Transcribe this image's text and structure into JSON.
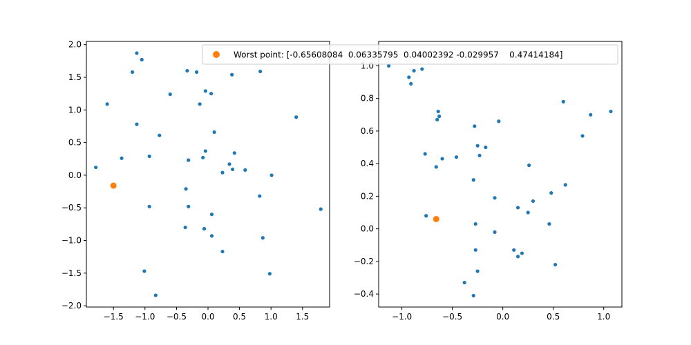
{
  "chart_data": [
    {
      "type": "scatter",
      "xlim": [
        -1.93,
        1.93
      ],
      "ylim": [
        -2.02,
        2.05
      ],
      "xticks": [
        -1.5,
        -1.0,
        -0.5,
        0.0,
        0.5,
        1.0,
        1.5
      ],
      "yticks": [
        -2.0,
        -1.5,
        -1.0,
        -0.5,
        0.0,
        0.5,
        1.0,
        1.5,
        2.0
      ],
      "xtick_labels": [
        "−1.5",
        "−1.0",
        "−0.5",
        "0.0",
        "0.5",
        "1.0",
        "1.5"
      ],
      "ytick_labels": [
        "−2.0",
        "−1.5",
        "−1.0",
        "−0.5",
        "0.0",
        "0.5",
        "1.0",
        "1.5",
        "2.0"
      ],
      "grid": false,
      "series": [
        {
          "color": "#1f77b4",
          "points": [
            [
              -1.13,
              1.87
            ],
            [
              -1.05,
              1.77
            ],
            [
              -1.2,
              1.58
            ],
            [
              -0.33,
              1.6
            ],
            [
              -0.18,
              1.58
            ],
            [
              0.38,
              1.54
            ],
            [
              0.83,
              1.59
            ],
            [
              -0.6,
              1.24
            ],
            [
              -0.04,
              1.29
            ],
            [
              0.05,
              1.25
            ],
            [
              -1.6,
              1.09
            ],
            [
              -0.13,
              1.09
            ],
            [
              1.4,
              0.89
            ],
            [
              -1.13,
              0.78
            ],
            [
              0.1,
              0.66
            ],
            [
              -0.77,
              0.61
            ],
            [
              -0.04,
              0.37
            ],
            [
              0.42,
              0.34
            ],
            [
              -0.93,
              0.29
            ],
            [
              -0.08,
              0.27
            ],
            [
              -1.37,
              0.26
            ],
            [
              -0.31,
              0.23
            ],
            [
              0.34,
              0.17
            ],
            [
              -1.78,
              0.12
            ],
            [
              0.39,
              0.09
            ],
            [
              0.59,
              0.08
            ],
            [
              0.23,
              0.04
            ],
            [
              1.01,
              0.0
            ],
            [
              -0.35,
              -0.21
            ],
            [
              0.82,
              -0.32
            ],
            [
              -0.93,
              -0.48
            ],
            [
              -0.31,
              -0.48
            ],
            [
              1.79,
              -0.52
            ],
            [
              0.06,
              -0.6
            ],
            [
              -0.36,
              -0.8
            ],
            [
              -0.06,
              -0.82
            ],
            [
              0.06,
              -0.93
            ],
            [
              0.87,
              -0.96
            ],
            [
              0.23,
              -1.17
            ],
            [
              -1.01,
              -1.47
            ],
            [
              0.98,
              -1.51
            ],
            [
              -0.83,
              -1.84
            ]
          ]
        },
        {
          "color": "#ff7f0e",
          "points": [
            [
              -1.5,
              -0.16
            ]
          ]
        }
      ]
    },
    {
      "type": "scatter",
      "xlim": [
        -1.23,
        1.18
      ],
      "ylim": [
        -0.48,
        1.15
      ],
      "xticks": [
        -1.0,
        -0.5,
        0.0,
        0.5,
        1.0
      ],
      "yticks": [
        -0.4,
        -0.2,
        0.0,
        0.2,
        0.4,
        0.6,
        0.8,
        1.0
      ],
      "xtick_labels": [
        "−1.0",
        "−0.5",
        "0.0",
        "0.5",
        "1.0"
      ],
      "ytick_labels": [
        "−0.4",
        "−0.2",
        "0.0",
        "0.2",
        "0.4",
        "0.6",
        "0.8",
        "1.0"
      ],
      "grid": false,
      "series": [
        {
          "color": "#1f77b4",
          "points": [
            [
              -1.13,
              1.0
            ],
            [
              -0.88,
              0.97
            ],
            [
              -0.8,
              0.98
            ],
            [
              -0.93,
              0.93
            ],
            [
              -0.91,
              0.89
            ],
            [
              0.6,
              0.78
            ],
            [
              -0.64,
              0.72
            ],
            [
              1.07,
              0.72
            ],
            [
              -0.63,
              0.69
            ],
            [
              0.87,
              0.7
            ],
            [
              -0.65,
              0.67
            ],
            [
              -0.04,
              0.66
            ],
            [
              -0.28,
              0.63
            ],
            [
              0.79,
              0.57
            ],
            [
              -0.25,
              0.51
            ],
            [
              -0.17,
              0.5
            ],
            [
              -0.77,
              0.46
            ],
            [
              -0.23,
              0.45
            ],
            [
              -0.46,
              0.44
            ],
            [
              -0.6,
              0.43
            ],
            [
              -0.66,
              0.38
            ],
            [
              0.26,
              0.39
            ],
            [
              -0.29,
              0.3
            ],
            [
              0.62,
              0.27
            ],
            [
              0.48,
              0.22
            ],
            [
              -0.08,
              0.19
            ],
            [
              0.3,
              0.17
            ],
            [
              0.15,
              0.13
            ],
            [
              0.25,
              0.1
            ],
            [
              -0.76,
              0.08
            ],
            [
              0.46,
              0.03
            ],
            [
              -0.27,
              0.03
            ],
            [
              -0.08,
              -0.02
            ],
            [
              -0.27,
              -0.13
            ],
            [
              0.11,
              -0.13
            ],
            [
              0.19,
              -0.15
            ],
            [
              0.15,
              -0.17
            ],
            [
              0.52,
              -0.22
            ],
            [
              -0.25,
              -0.26
            ],
            [
              -0.38,
              -0.33
            ],
            [
              -0.29,
              -0.41
            ]
          ]
        },
        {
          "color": "#ff7f0e",
          "points": [
            [
              -0.66,
              0.06
            ]
          ]
        }
      ]
    }
  ],
  "legend": {
    "placement": "top",
    "marker_color": "#ff7f0e",
    "label": "Worst point: [-0.65608084  0.06335795  0.04002392 -0.029957    0.47414184]"
  }
}
